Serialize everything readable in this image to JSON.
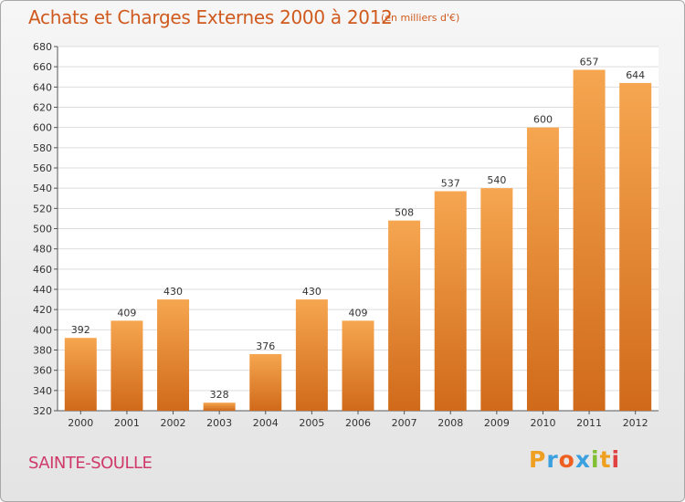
{
  "header": {
    "title": "Achats et Charges Externes 2000 à 2012",
    "unit": "(en milliers d'€)"
  },
  "footer": {
    "place": "SAINTE-SOULLE",
    "logo_letters": [
      "P",
      "r",
      "o",
      "x",
      "i",
      "t",
      "i"
    ],
    "logo_colors": [
      "#f0a020",
      "#3aa0e0",
      "#ef6020",
      "#3aa0e0",
      "#7fbf30",
      "#f0a020",
      "#e04040"
    ]
  },
  "chart_data": {
    "type": "bar",
    "categories": [
      "2000",
      "2001",
      "2002",
      "2003",
      "2004",
      "2005",
      "2006",
      "2007",
      "2008",
      "2009",
      "2010",
      "2011",
      "2012"
    ],
    "values": [
      392,
      409,
      430,
      328,
      376,
      430,
      409,
      508,
      537,
      540,
      600,
      657,
      644
    ],
    "title": "Achats et Charges Externes 2000 à 2012",
    "xlabel": "",
    "ylabel": "",
    "ylim": [
      320,
      680
    ],
    "yticks": [
      320,
      340,
      360,
      380,
      400,
      420,
      440,
      460,
      480,
      500,
      520,
      540,
      560,
      580,
      600,
      620,
      640,
      660,
      680
    ],
    "grid": true,
    "bar_color": "#f09030",
    "bar_color_dark": "#d06a1a"
  }
}
